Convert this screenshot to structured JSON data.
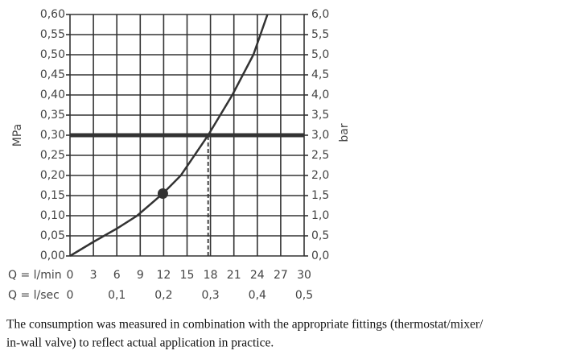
{
  "chart_data": {
    "type": "line",
    "xlabel": "Q = l/min",
    "x2label": "Q = l/sec",
    "ylabel": "MPa",
    "y2label": "bar",
    "xlim": [
      0,
      30
    ],
    "xticks": [
      0,
      3,
      6,
      9,
      12,
      15,
      18,
      21,
      24,
      27,
      30
    ],
    "x2lim": [
      0,
      0.5
    ],
    "x2ticks": [
      0,
      {
        "value": 0.1,
        "label": "0,1"
      },
      {
        "value": 0.2,
        "label": "0,2"
      },
      {
        "value": 0.3,
        "label": "0,3"
      },
      {
        "value": 0.4,
        "label": "0,4"
      },
      {
        "value": 0.5,
        "label": "0,5"
      }
    ],
    "ylim": [
      0,
      0.6
    ],
    "yticks": [
      {
        "value": 0,
        "label": "0,00"
      },
      {
        "value": 0.05,
        "label": "0,05"
      },
      {
        "value": 0.1,
        "label": "0,10"
      },
      {
        "value": 0.15,
        "label": "0,15"
      },
      {
        "value": 0.2,
        "label": "0,20"
      },
      {
        "value": 0.25,
        "label": "0,25"
      },
      {
        "value": 0.3,
        "label": "0,30"
      },
      {
        "value": 0.35,
        "label": "0,35"
      },
      {
        "value": 0.4,
        "label": "0,40"
      },
      {
        "value": 0.45,
        "label": "0,45"
      },
      {
        "value": 0.5,
        "label": "0,50"
      },
      {
        "value": 0.55,
        "label": "0,55"
      },
      {
        "value": 0.6,
        "label": "0,60"
      }
    ],
    "y2lim": [
      0,
      6
    ],
    "y2ticks": [
      {
        "value": 0,
        "label": "0,0"
      },
      {
        "value": 0.5,
        "label": "0,5"
      },
      {
        "value": 1,
        "label": "1,0"
      },
      {
        "value": 1.5,
        "label": "1,5"
      },
      {
        "value": 2,
        "label": "2,0"
      },
      {
        "value": 2.5,
        "label": "2,5"
      },
      {
        "value": 3,
        "label": "3,0"
      },
      {
        "value": 3.5,
        "label": "3,5"
      },
      {
        "value": 4,
        "label": "4,0"
      },
      {
        "value": 4.5,
        "label": "4,5"
      },
      {
        "value": 5,
        "label": "5,0"
      },
      {
        "value": 5.5,
        "label": "5,5"
      },
      {
        "value": 6,
        "label": "6,0"
      }
    ],
    "grid": true,
    "x": [
      0,
      3,
      6,
      8.6,
      11.9,
      14.2,
      17.7,
      20.8,
      23.5,
      25.3
    ],
    "series": [
      {
        "color": "#333333",
        "values": [
          0,
          0.035,
          0.068,
          0.1,
          0.155,
          0.2,
          0.3,
          0.4,
          0.5,
          0.6
        ]
      }
    ],
    "reference_line": {
      "y": 0.3,
      "color": "#333333"
    },
    "drop_line": {
      "x": 17.7
    },
    "marker": {
      "x": 11.9,
      "y": 0.155,
      "color": "#333333"
    }
  },
  "caption_lines": [
    "The consumption was measured in combination with the appropriate fittings (thermostat/mixer/",
    "in-wall valve) to reflect actual application in practice."
  ]
}
